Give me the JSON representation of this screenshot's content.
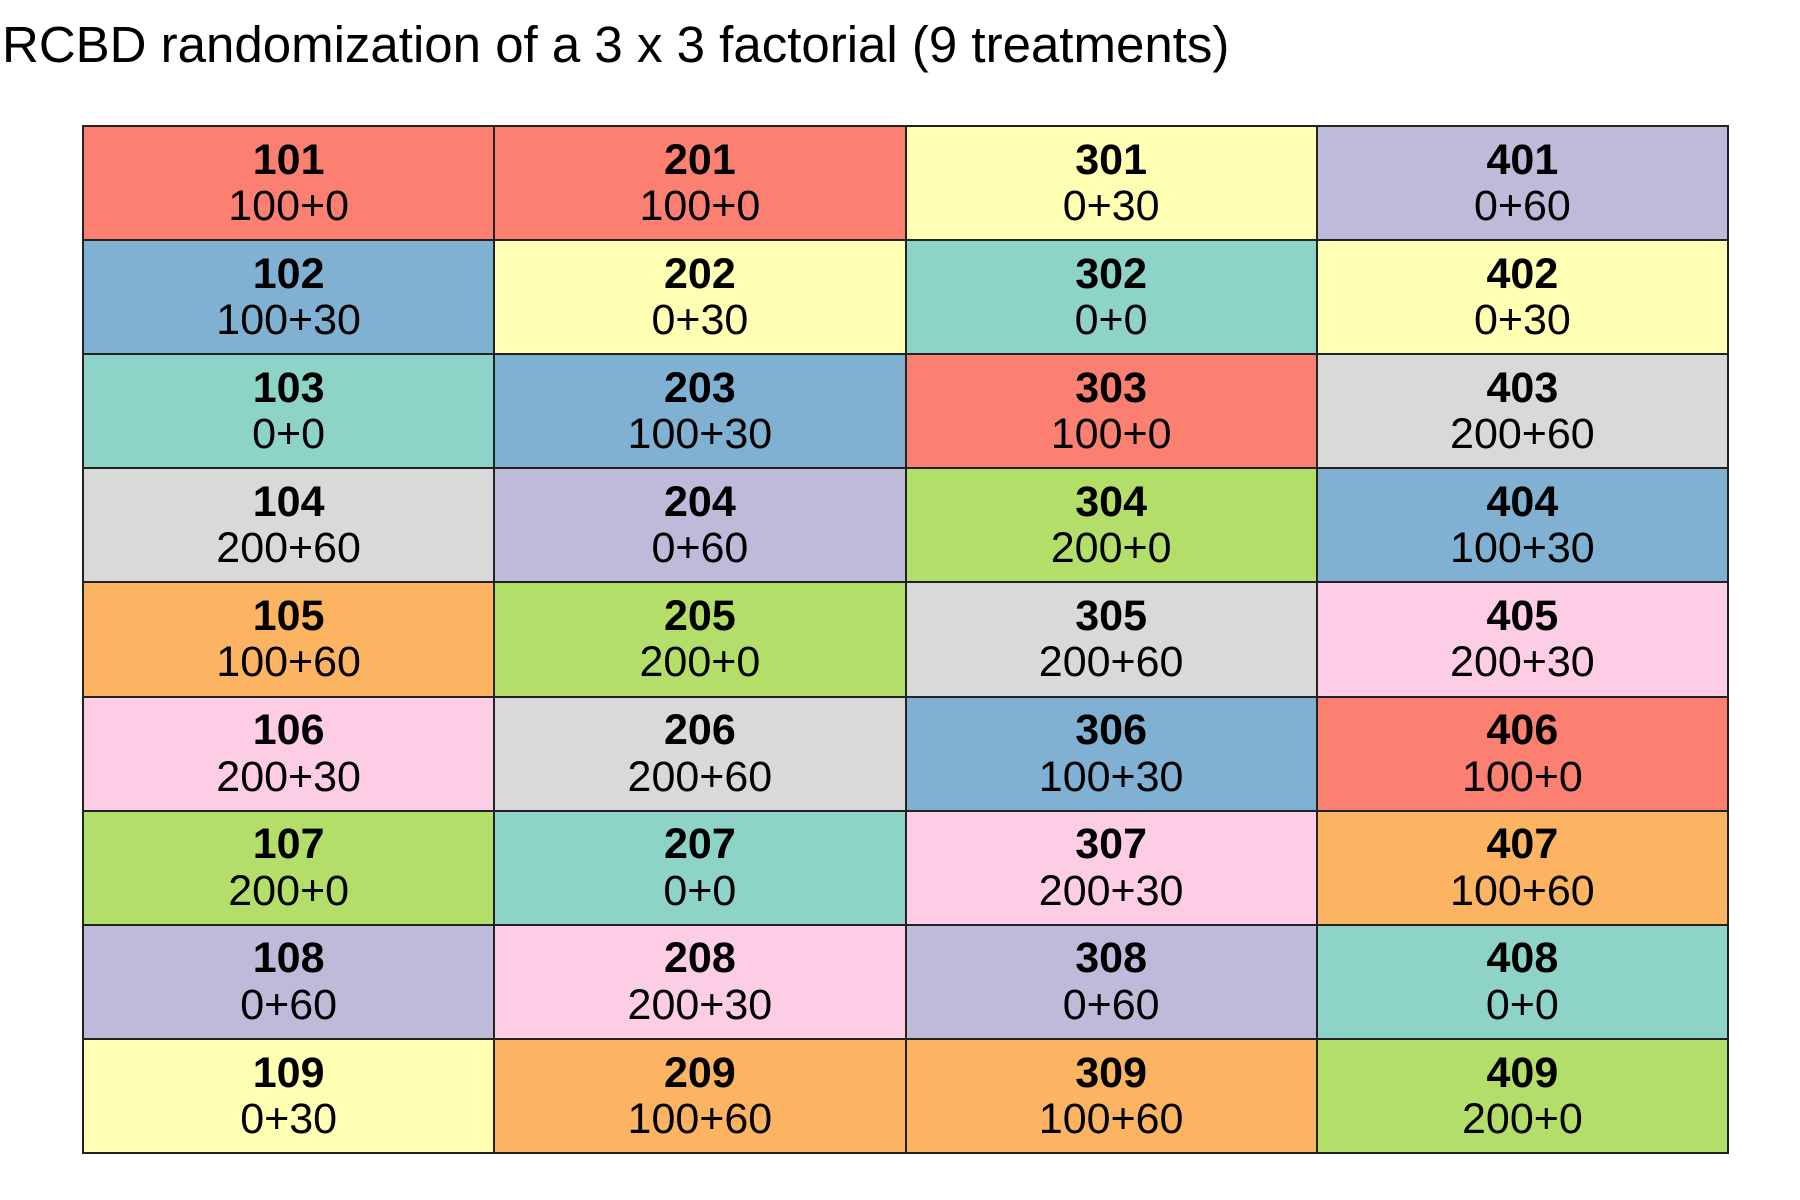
{
  "title": "RCBD randomization of a 3 x 3 factorial (9 treatments)",
  "treatment_colors": {
    "100+0": "#FB8072",
    "0+30": "#FFFFB3",
    "0+60": "#BEBADA",
    "100+30": "#80B1D3",
    "0+0": "#8DD3C7",
    "200+60": "#D9D9D9",
    "200+0": "#B3DE69",
    "100+60": "#FDB462",
    "200+30": "#FCCDE5"
  },
  "rows": [
    [
      {
        "id": "101",
        "trt": "100+0"
      },
      {
        "id": "201",
        "trt": "100+0"
      },
      {
        "id": "301",
        "trt": "0+30"
      },
      {
        "id": "401",
        "trt": "0+60"
      }
    ],
    [
      {
        "id": "102",
        "trt": "100+30"
      },
      {
        "id": "202",
        "trt": "0+30"
      },
      {
        "id": "302",
        "trt": "0+0"
      },
      {
        "id": "402",
        "trt": "0+30"
      }
    ],
    [
      {
        "id": "103",
        "trt": "0+0"
      },
      {
        "id": "203",
        "trt": "100+30"
      },
      {
        "id": "303",
        "trt": "100+0"
      },
      {
        "id": "403",
        "trt": "200+60"
      }
    ],
    [
      {
        "id": "104",
        "trt": "200+60"
      },
      {
        "id": "204",
        "trt": "0+60"
      },
      {
        "id": "304",
        "trt": "200+0"
      },
      {
        "id": "404",
        "trt": "100+30"
      }
    ],
    [
      {
        "id": "105",
        "trt": "100+60"
      },
      {
        "id": "205",
        "trt": "200+0"
      },
      {
        "id": "305",
        "trt": "200+60"
      },
      {
        "id": "405",
        "trt": "200+30"
      }
    ],
    [
      {
        "id": "106",
        "trt": "200+30"
      },
      {
        "id": "206",
        "trt": "200+60"
      },
      {
        "id": "306",
        "trt": "100+30"
      },
      {
        "id": "406",
        "trt": "100+0"
      }
    ],
    [
      {
        "id": "107",
        "trt": "200+0"
      },
      {
        "id": "207",
        "trt": "0+0"
      },
      {
        "id": "307",
        "trt": "200+30"
      },
      {
        "id": "407",
        "trt": "100+60"
      }
    ],
    [
      {
        "id": "108",
        "trt": "0+60"
      },
      {
        "id": "208",
        "trt": "200+30"
      },
      {
        "id": "308",
        "trt": "0+60"
      },
      {
        "id": "408",
        "trt": "0+0"
      }
    ],
    [
      {
        "id": "109",
        "trt": "0+30"
      },
      {
        "id": "209",
        "trt": "100+60"
      },
      {
        "id": "309",
        "trt": "100+60"
      },
      {
        "id": "409",
        "trt": "200+0"
      }
    ]
  ]
}
